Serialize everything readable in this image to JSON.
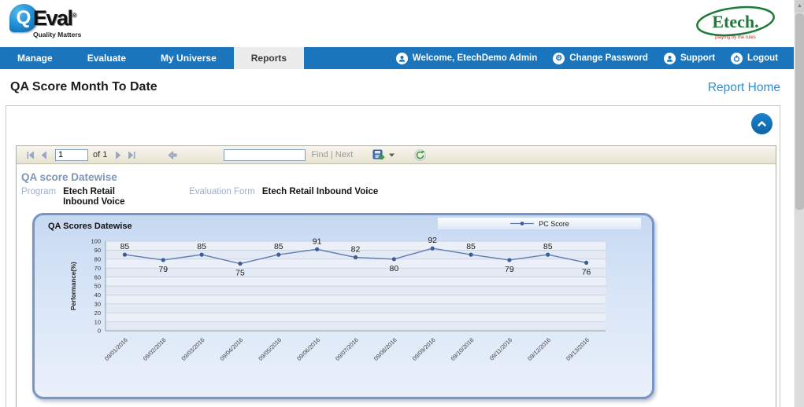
{
  "header": {
    "qeval_logo": {
      "q": "Q",
      "word": "Eval",
      "reg": "®",
      "tagline": "Quality Matters"
    },
    "etech_logo": {
      "word": "Etech.",
      "tagline": "playing by the rules"
    }
  },
  "nav": {
    "items": [
      {
        "label": "Manage"
      },
      {
        "label": "Evaluate"
      },
      {
        "label": "My Universe"
      },
      {
        "label": "Reports"
      }
    ],
    "right_items": [
      {
        "label": "Welcome, EtechDemo Admin"
      },
      {
        "label": "Change Password"
      },
      {
        "label": "Support"
      },
      {
        "label": "Logout"
      }
    ]
  },
  "page": {
    "title": "QA Score Month To Date",
    "report_home_label": "Report Home"
  },
  "toolbar": {
    "page_number": "1",
    "of_label": "of 1",
    "search_value": "",
    "find_label": "Find",
    "separator": "|",
    "next_label": "Next"
  },
  "report": {
    "title": "QA score Datewise",
    "program_label": "Program",
    "program_value": "Etech Retail Inbound Voice",
    "evaluation_form_label": "Evaluation Form",
    "evaluation_form_value": "Etech Retail Inbound Voice"
  },
  "chart_data": {
    "type": "line",
    "title": "QA Scores Datewise",
    "ylabel": "Performance(%)",
    "xlabel": "",
    "ylim": [
      0,
      100
    ],
    "ytick_step": 10,
    "grid": true,
    "legend_position": "top-right",
    "categories": [
      "09/01/2016",
      "09/02/2016",
      "09/03/2016",
      "09/04/2016",
      "09/05/2016",
      "09/06/2016",
      "09/07/2016",
      "09/08/2016",
      "09/09/2016",
      "09/10/2016",
      "09/11/2016",
      "09/12/2016",
      "09/13/2016"
    ],
    "series": [
      {
        "name": "PC Score",
        "values": [
          85,
          79,
          85,
          75,
          85,
          91,
          82,
          80,
          92,
          85,
          79,
          85,
          76
        ]
      }
    ],
    "colors": {
      "line": "#5e7db0",
      "marker": "#3e5d95",
      "panel_border": "#7b94c6"
    }
  },
  "colors": {
    "nav_blue": "#1a75bc",
    "link_blue": "#2e8fd0"
  }
}
